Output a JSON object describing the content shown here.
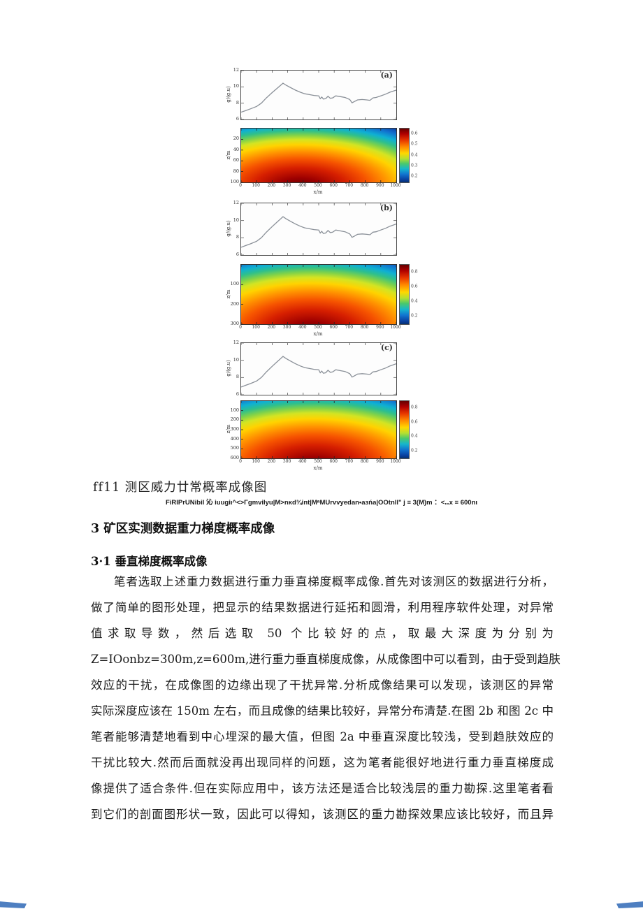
{
  "figure": {
    "line_ylabel": "g/(g.u)",
    "line_yticks": [
      "12",
      "10",
      "8",
      "6"
    ],
    "hm_ylabel": "z/m",
    "xlabel": "x/m",
    "xticks": [
      "0",
      "100",
      "200",
      "300",
      "400",
      "500",
      "600",
      "700",
      "800",
      "900",
      "1000"
    ],
    "panels": [
      {
        "label": "(a)",
        "hm_yticks": [
          "20",
          "40",
          "60",
          "80",
          "100"
        ],
        "cbar_ticks": [
          "0.6",
          "0.5",
          "0.4",
          "0.3",
          "0.2"
        ],
        "hot_x": "38%",
        "hot_y": "108%",
        "rx": "115%",
        "ry": "135%"
      },
      {
        "label": "(b)",
        "hm_yticks": [
          "100",
          "200",
          "300"
        ],
        "cbar_ticks": [
          "0.8",
          "0.6",
          "0.4",
          "0.2"
        ],
        "hot_x": "45%",
        "hot_y": "112%",
        "rx": "118%",
        "ry": "140%"
      },
      {
        "label": "(c)",
        "hm_yticks": [
          "100",
          "200",
          "300",
          "400",
          "500",
          "600"
        ],
        "cbar_ticks": [
          "0.8",
          "0.6",
          "0.4",
          "0.2"
        ],
        "hot_x": "47%",
        "hot_y": "115%",
        "rx": "120%",
        "ry": "145%"
      }
    ]
  },
  "chart_data": [
    {
      "type": "line",
      "title": "gravity anomaly profile (identical curve shown in panels a, b and c)",
      "xlabel": "x/m",
      "ylabel": "g/(g.u)",
      "xlim": [
        0,
        1000
      ],
      "ylim": [
        6,
        12
      ],
      "x": [
        0,
        30,
        60,
        100,
        130,
        160,
        200,
        230,
        255,
        270,
        290,
        320,
        350,
        380,
        410,
        440,
        470,
        500,
        510,
        520,
        530,
        545,
        560,
        575,
        590,
        610,
        640,
        670,
        700,
        715,
        730,
        750,
        780,
        810,
        830,
        850,
        870,
        900,
        930,
        960,
        1000
      ],
      "y": [
        6.9,
        7.1,
        7.3,
        7.6,
        8.0,
        8.6,
        9.3,
        9.8,
        10.2,
        10.45,
        10.2,
        9.9,
        9.6,
        9.35,
        9.15,
        9.05,
        8.95,
        8.9,
        8.55,
        8.75,
        8.5,
        8.55,
        8.85,
        8.6,
        8.65,
        8.9,
        8.8,
        8.7,
        8.45,
        8.05,
        8.2,
        8.4,
        8.45,
        8.4,
        8.35,
        8.65,
        8.7,
        8.9,
        9.1,
        9.35,
        9.6
      ]
    },
    {
      "type": "heatmap",
      "panel": "(a)",
      "xlabel": "x/m",
      "ylabel": "z/m",
      "xlim": [
        0,
        1000
      ],
      "depth_range": [
        0,
        100
      ],
      "yticks": [
        20,
        40,
        60,
        80,
        100
      ],
      "colorbar_ticks": [
        0.6,
        0.5,
        0.4,
        0.3,
        0.2
      ],
      "description": "jet-colormap probability section, max depth 100 m; dark-red maximum (~0.6) at 80-100 m depth centred near x=300; blue minimum (~0.2) along the top"
    },
    {
      "type": "heatmap",
      "panel": "(b)",
      "xlabel": "x/m",
      "ylabel": "z/m",
      "xlim": [
        0,
        1000
      ],
      "depth_range": [
        0,
        300
      ],
      "yticks": [
        100,
        200,
        300
      ],
      "colorbar_ticks": [
        0.8,
        0.6,
        0.4,
        0.2
      ],
      "description": "jet-colormap probability section, max depth 300 m; dark-red maximum (~0.8) near bottom centre around x=450; blue (~0.2) along the top"
    },
    {
      "type": "heatmap",
      "panel": "(c)",
      "xlabel": "x/m",
      "ylabel": "z/m",
      "xlim": [
        0,
        1000
      ],
      "depth_range": [
        0,
        600
      ],
      "yticks": [
        100,
        200,
        300,
        400,
        500,
        600
      ],
      "colorbar_ticks": [
        0.8,
        0.6,
        0.4,
        0.2
      ],
      "description": "jet-colormap probability section, max depth 600 m; dark-red maximum (~0.8) near 450-600 m depth centred around x=480; blue (~0.2) along the top"
    }
  ],
  "caption": {
    "title": "ff11 测区威力廿常概率成像图",
    "subtitle": "FiRIPrUNibil 沁 iuugiι^<>Γgmvilyu|M>nκd¾int|MᵃMUrvvyedan•aзńa|OOtnll\" j ≡ 3(M)m ：<‥x ≡ 600nι"
  },
  "sections": {
    "h1": "3 矿区实测数据重力梯度概率成像",
    "h2": "3·1 垂直梯度概率成像"
  },
  "body_lines": [
    "笔者选取上述重力数据进行重力垂直梯度概率成像.首先对该测区的数据进行分析，",
    "做了简单的图形处理，把显示的结果数据进行延拓和圆滑，利用程序软件处理，对异常",
    "值求取导数，然后选取 50 个比较好的点，取最大深度为分别为",
    "Z=IOonbz=300m,z=600m,进行重力垂直梯度成像，从成像图中可以看到，由于受到趋肤",
    "效应的干扰，在成像图的边缘出现了干扰异常.分析成像结果可以发现，该测区的异常",
    "实际深度应该在 150m 左右，而且成像的结果比较好，异常分布清楚.在图 2b 和图 2c 中",
    "笔者能够清楚地看到中心埋深的最大值，但图 2a 中垂直深度比较浅，受到趋肤效应的",
    "干扰比较大.然而后面就没再出现同样的问题，这为笔者能很好地进行重力垂直梯度成",
    "像提供了适合条件.但在实际应用中，该方法还是适合比较浅层的重力勘探.这里笔者看",
    "到它们的剖面图形状一致，因此可以得知，该测区的重力勘探效果应该比较好，而且异"
  ],
  "colors": {
    "curve": "#8a9098",
    "plot_border": "#4a4a4a",
    "corner_marker": "#4e7fc1",
    "jet_stops": [
      "#650000 0%",
      "#9e0000 12%",
      "#d61f00 26%",
      "#f65300 38%",
      "#ff9000 48%",
      "#ffd300 58%",
      "#d3e423 65%",
      "#7fd24a 71%",
      "#2fc08b 77%",
      "#0fb0d3 83%",
      "#1173cf 90%",
      "#0b46ad 96%",
      "#083a8f 100%"
    ],
    "cbar_stops": [
      "#650000",
      "#b00000 10%",
      "#e83800 22%",
      "#ff8a00 34%",
      "#ffd700 46%",
      "#b5df30 56%",
      "#4cc96a 65%",
      "#16b6cc 75%",
      "#1173cf 85%",
      "#0a3f9f 95%",
      "#07306f"
    ]
  }
}
